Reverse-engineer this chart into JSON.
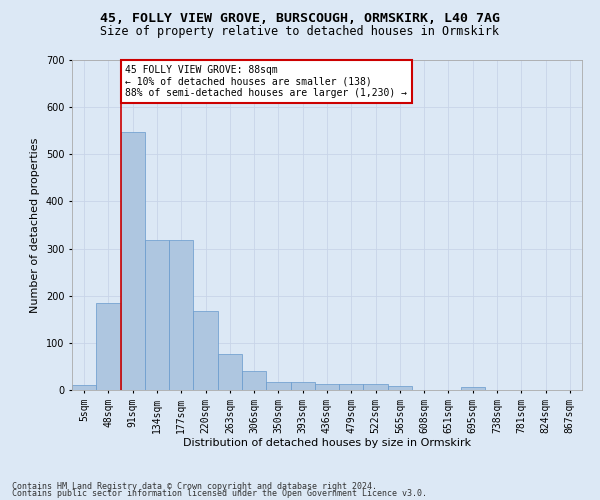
{
  "title1": "45, FOLLY VIEW GROVE, BURSCOUGH, ORMSKIRK, L40 7AG",
  "title2": "Size of property relative to detached houses in Ormskirk",
  "xlabel": "Distribution of detached houses by size in Ormskirk",
  "ylabel": "Number of detached properties",
  "footnote1": "Contains HM Land Registry data © Crown copyright and database right 2024.",
  "footnote2": "Contains public sector information licensed under the Open Government Licence v3.0.",
  "bin_labels": [
    "5sqm",
    "48sqm",
    "91sqm",
    "134sqm",
    "177sqm",
    "220sqm",
    "263sqm",
    "306sqm",
    "350sqm",
    "393sqm",
    "436sqm",
    "479sqm",
    "522sqm",
    "565sqm",
    "608sqm",
    "651sqm",
    "695sqm",
    "738sqm",
    "781sqm",
    "824sqm",
    "867sqm"
  ],
  "bar_values": [
    10,
    185,
    548,
    318,
    318,
    168,
    76,
    40,
    18,
    18,
    13,
    12,
    12,
    8,
    0,
    0,
    7,
    0,
    0,
    0,
    0
  ],
  "bar_color": "#aec6e0",
  "bar_edge_color": "#6699cc",
  "vline_color": "#cc0000",
  "annotation_text": "45 FOLLY VIEW GROVE: 88sqm\n← 10% of detached houses are smaller (138)\n88% of semi-detached houses are larger (1,230) →",
  "annotation_box_color": "white",
  "annotation_box_edge": "#cc0000",
  "ylim": [
    0,
    700
  ],
  "yticks": [
    0,
    100,
    200,
    300,
    400,
    500,
    600,
    700
  ],
  "grid_color": "#c8d4e8",
  "bg_color": "#dce8f5",
  "plot_bg_color": "#dce8f5",
  "title1_fontsize": 9.5,
  "title2_fontsize": 8.5,
  "xlabel_fontsize": 8,
  "ylabel_fontsize": 8,
  "tick_fontsize": 7,
  "annot_fontsize": 7,
  "footnote_fontsize": 6
}
